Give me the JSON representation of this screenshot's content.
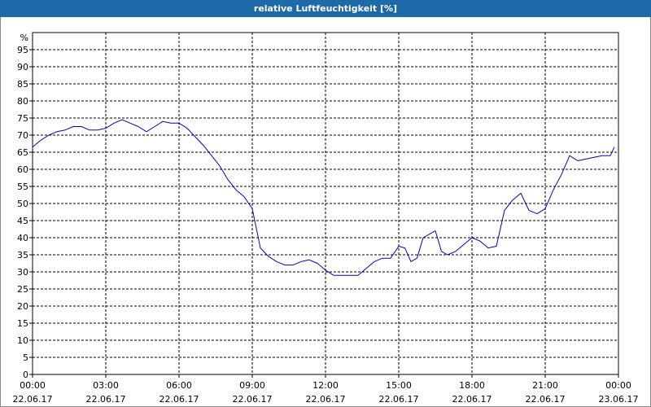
{
  "window": {
    "title": "relative Luftfeuchtigkeit [%]"
  },
  "chart_data": {
    "type": "line",
    "title": "relative Luftfeuchtigkeit [%]",
    "ylabel": "%",
    "xlabel": "",
    "ylim": [
      0,
      100
    ],
    "y_ticks": [
      0,
      5,
      10,
      15,
      20,
      25,
      30,
      35,
      40,
      45,
      50,
      55,
      60,
      65,
      70,
      75,
      80,
      85,
      90,
      95
    ],
    "x_ticks": [
      {
        "time": "00:00",
        "date": "22.06.17"
      },
      {
        "time": "03:00",
        "date": "22.06.17"
      },
      {
        "time": "06:00",
        "date": "22.06.17"
      },
      {
        "time": "09:00",
        "date": "22.06.17"
      },
      {
        "time": "12:00",
        "date": "22.06.17"
      },
      {
        "time": "15:00",
        "date": "22.06.17"
      },
      {
        "time": "18:00",
        "date": "22.06.17"
      },
      {
        "time": "21:00",
        "date": "22.06.17"
      },
      {
        "time": "00:00",
        "date": "23.06.17"
      }
    ],
    "grid": true,
    "colors": {
      "line": "#0000cc",
      "grid": "#000000",
      "title_bar": "#1e6aa8"
    },
    "series": [
      {
        "x": [
          "00:00",
          "00:20",
          "00:40",
          "01:00",
          "01:20",
          "01:40",
          "02:00",
          "02:20",
          "02:40",
          "03:00",
          "03:20",
          "03:40",
          "04:00",
          "04:20",
          "04:40",
          "05:00",
          "05:20",
          "05:40",
          "06:00",
          "06:20",
          "06:40",
          "07:00",
          "07:20",
          "07:40",
          "08:00",
          "08:20",
          "08:40",
          "09:00",
          "09:20",
          "09:40",
          "10:00",
          "10:20",
          "10:40",
          "11:00",
          "11:20",
          "11:40",
          "12:00",
          "12:20",
          "12:40",
          "13:00",
          "13:20",
          "13:40",
          "14:00",
          "14:20",
          "14:40",
          "15:00",
          "15:15",
          "15:30",
          "15:45",
          "16:00",
          "16:15",
          "16:30",
          "16:45",
          "17:00",
          "17:20",
          "17:40",
          "18:00",
          "18:20",
          "18:40",
          "19:00",
          "19:20",
          "19:40",
          "20:00",
          "20:20",
          "20:40",
          "21:00",
          "21:20",
          "21:40",
          "22:00",
          "22:20",
          "22:40",
          "23:00",
          "23:20",
          "23:40",
          "23:50"
        ],
        "values": [
          66.5,
          68.5,
          70,
          71,
          71.5,
          72.5,
          72.5,
          71.5,
          71.5,
          72,
          73.5,
          74.5,
          73.5,
          72.5,
          71,
          72.5,
          74,
          73.5,
          73.5,
          72,
          69.5,
          67,
          64,
          61,
          57,
          54,
          52,
          48.5,
          37,
          34.5,
          33,
          32,
          32,
          33,
          33.5,
          32.5,
          30.5,
          29,
          29,
          29,
          29,
          31,
          33,
          34,
          34,
          37.5,
          37,
          33,
          34,
          40,
          41,
          42,
          36,
          35,
          36,
          38,
          40,
          39,
          37,
          37.5,
          48,
          51,
          53,
          48,
          47,
          48.5,
          54,
          58.5,
          64,
          62.5,
          63,
          63.5,
          64,
          64,
          66.5
        ]
      }
    ]
  }
}
